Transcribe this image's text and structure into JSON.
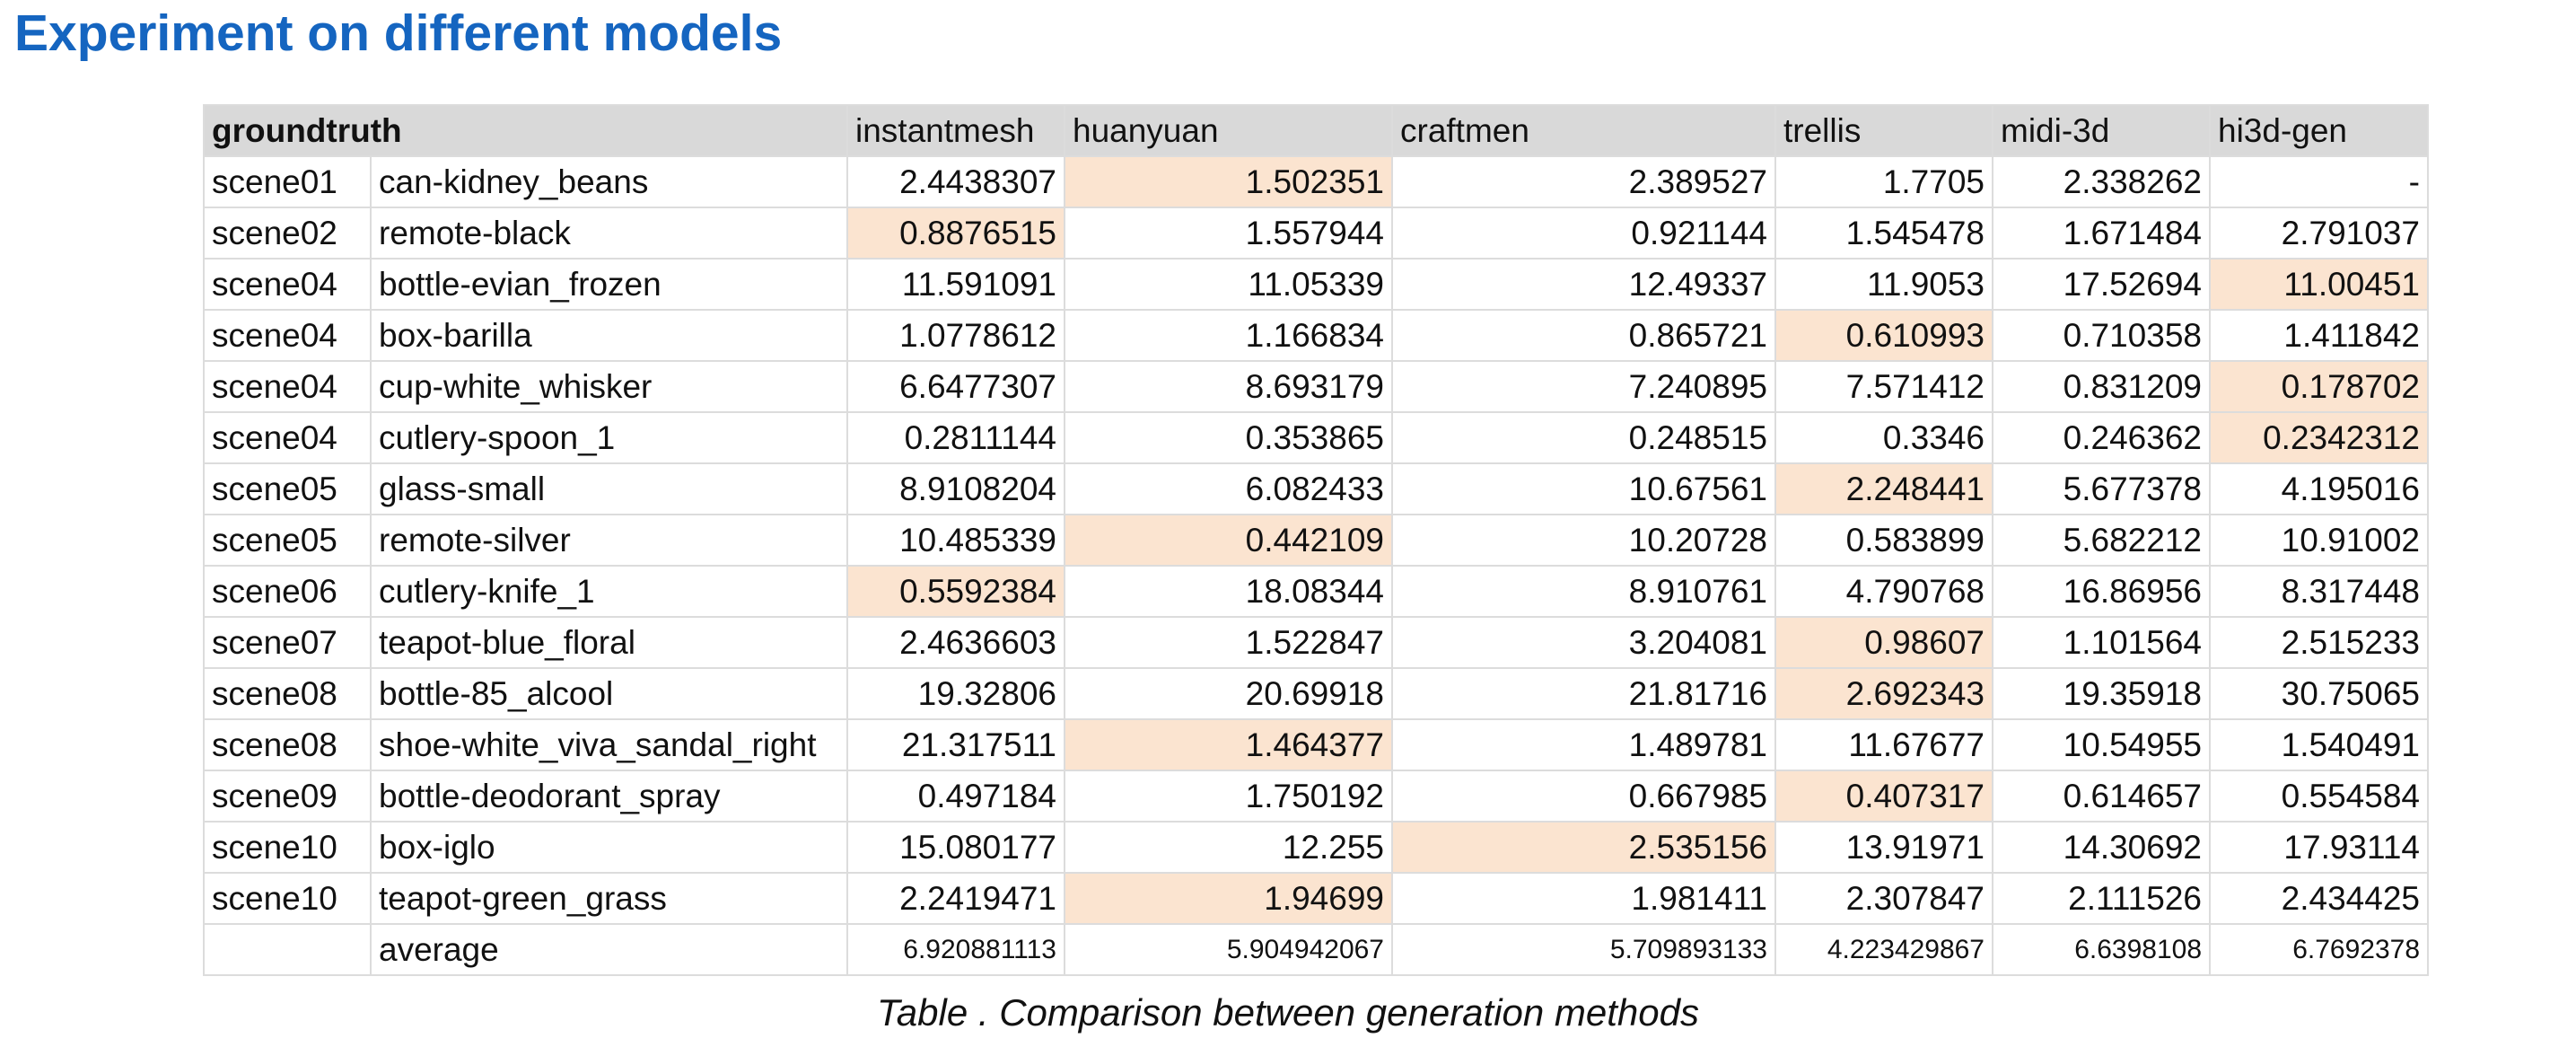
{
  "title": "Experiment on different models",
  "caption": "Table . Comparison between generation methods",
  "highlight_color": "#fbe4d0",
  "header": {
    "groundtruth": "groundtruth",
    "methods": [
      "instantmesh",
      "huanyuan",
      "craftmen",
      "trellis",
      "midi-3d",
      "hi3d-gen"
    ]
  },
  "rows": [
    {
      "scene": "scene01",
      "object": "can-kidney_beans",
      "values": [
        "2.4438307",
        "1.502351",
        "2.389527",
        "1.7705",
        "2.338262",
        "-"
      ],
      "best": 1
    },
    {
      "scene": "scene02",
      "object": "remote-black",
      "values": [
        "0.8876515",
        "1.557944",
        "0.921144",
        "1.545478",
        "1.671484",
        "2.791037"
      ],
      "best": 0
    },
    {
      "scene": "scene04",
      "object": "bottle-evian_frozen",
      "values": [
        "11.591091",
        "11.05339",
        "12.49337",
        "11.9053",
        "17.52694",
        "11.00451"
      ],
      "best": 5
    },
    {
      "scene": "scene04",
      "object": "box-barilla",
      "values": [
        "1.0778612",
        "1.166834",
        "0.865721",
        "0.610993",
        "0.710358",
        "1.411842"
      ],
      "best": 3
    },
    {
      "scene": "scene04",
      "object": "cup-white_whisker",
      "values": [
        "6.6477307",
        "8.693179",
        "7.240895",
        "7.571412",
        "0.831209",
        "0.178702"
      ],
      "best": 5
    },
    {
      "scene": "scene04",
      "object": "cutlery-spoon_1",
      "values": [
        "0.2811144",
        "0.353865",
        "0.248515",
        "0.3346",
        "0.246362",
        "0.2342312"
      ],
      "best": 5
    },
    {
      "scene": "scene05",
      "object": "glass-small",
      "values": [
        "8.9108204",
        "6.082433",
        "10.67561",
        "2.248441",
        "5.677378",
        "4.195016"
      ],
      "best": 3
    },
    {
      "scene": "scene05",
      "object": "remote-silver",
      "values": [
        "10.485339",
        "0.442109",
        "10.20728",
        "0.583899",
        "5.682212",
        "10.91002"
      ],
      "best": 1
    },
    {
      "scene": "scene06",
      "object": "cutlery-knife_1",
      "values": [
        "0.5592384",
        "18.08344",
        "8.910761",
        "4.790768",
        "16.86956",
        "8.317448"
      ],
      "best": 0
    },
    {
      "scene": "scene07",
      "object": "teapot-blue_floral",
      "values": [
        "2.4636603",
        "1.522847",
        "3.204081",
        "0.98607",
        "1.101564",
        "2.515233"
      ],
      "best": 3
    },
    {
      "scene": "scene08",
      "object": "bottle-85_alcool",
      "values": [
        "19.32806",
        "20.69918",
        "21.81716",
        "2.692343",
        "19.35918",
        "30.75065"
      ],
      "best": 3
    },
    {
      "scene": "scene08",
      "object": "shoe-white_viva_sandal_right",
      "values": [
        "21.317511",
        "1.464377",
        "1.489781",
        "11.67677",
        "10.54955",
        "1.540491"
      ],
      "best": 1
    },
    {
      "scene": "scene09",
      "object": "bottle-deodorant_spray",
      "values": [
        "0.497184",
        "1.750192",
        "0.667985",
        "0.407317",
        "0.614657",
        "0.554584"
      ],
      "best": 3
    },
    {
      "scene": "scene10",
      "object": "box-iglo",
      "values": [
        "15.080177",
        "12.255",
        "2.535156",
        "13.91971",
        "14.30692",
        "17.93114"
      ],
      "best": 2
    },
    {
      "scene": "scene10",
      "object": "teapot-green_grass",
      "values": [
        "2.2419471",
        "1.94699",
        "1.981411",
        "2.307847",
        "2.111526",
        "2.434425"
      ],
      "best": 1
    }
  ],
  "average": {
    "label": "average",
    "values": [
      "6.920881113",
      "5.904942067",
      "5.709893133",
      "4.223429867",
      "6.6398108",
      "6.7692378"
    ]
  }
}
